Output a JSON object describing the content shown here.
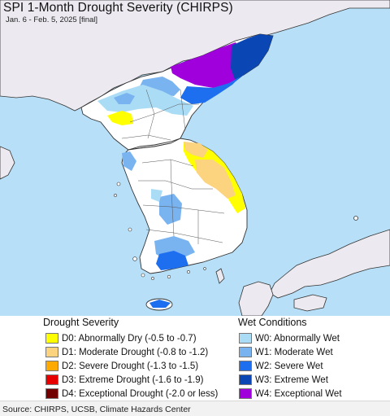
{
  "map": {
    "title": "SPI 1-Month Drought Severity (CHIRPS)",
    "subtitle": "Jan. 6 - Feb. 5, 2025 [final]",
    "colors": {
      "ocean": "#b7e0f8",
      "land": "#ffffff",
      "foreign_land": "#eceaf0"
    }
  },
  "legend": {
    "drought": {
      "title": "Drought Severity",
      "items": [
        {
          "label": "D0: Abnormally Dry (-0.5 to -0.7)",
          "color": "#ffff00"
        },
        {
          "label": "D1: Moderate Drought (-0.8 to -1.2)",
          "color": "#fcd37f"
        },
        {
          "label": "D2: Severe Drought (-1.3 to -1.5)",
          "color": "#ffaa00"
        },
        {
          "label": "D3: Extreme Drought (-1.6 to -1.9)",
          "color": "#e60000"
        },
        {
          "label": "D4: Exceptional Drought (-2.0 or less)",
          "color": "#730000"
        }
      ]
    },
    "wet": {
      "title": "Wet Conditions",
      "items": [
        {
          "label": "W0: Abnormally Wet",
          "color": "#aadcf5"
        },
        {
          "label": "W1: Moderate Wet",
          "color": "#7ab4f0"
        },
        {
          "label": "W2: Severe Wet",
          "color": "#1e6ff0"
        },
        {
          "label": "W3: Extreme Wet",
          "color": "#0a46b4"
        },
        {
          "label": "W4: Exceptional Wet",
          "color": "#a000dc"
        }
      ]
    }
  },
  "footer": {
    "source": "Source: CHIRPS, UCSB, Climate Hazards Center"
  }
}
